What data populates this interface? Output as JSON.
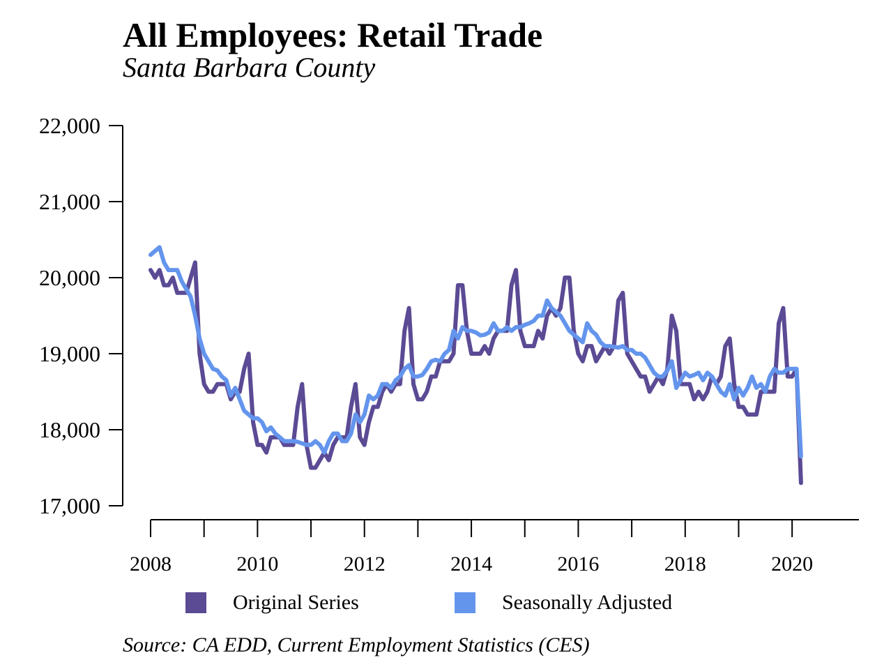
{
  "chart_data": {
    "type": "line",
    "title": "All Employees: Retail Trade",
    "subtitle": "Santa Barbara County",
    "source": "Source: CA EDD, Current Employment Statistics (CES)",
    "xlabel": "",
    "ylabel": "",
    "ylim": [
      17000,
      22000
    ],
    "xlim": [
      2008,
      2021.25
    ],
    "y_ticks": [
      17000,
      18000,
      19000,
      20000,
      21000,
      22000
    ],
    "y_tick_labels": [
      "17,000",
      "18,000",
      "19,000",
      "20,000",
      "21,000",
      "22,000"
    ],
    "x_ticks": [
      2008,
      2009,
      2010,
      2011,
      2012,
      2013,
      2014,
      2015,
      2016,
      2017,
      2018,
      2019,
      2020
    ],
    "x_tick_labels": [
      "2008",
      "2010",
      "2012",
      "2014",
      "2016",
      "2018",
      "2020"
    ],
    "x_tick_label_years": [
      2008,
      2010,
      2012,
      2014,
      2016,
      2018,
      2020
    ],
    "grid": false,
    "legend_position": "bottom",
    "x_start": "2008-01",
    "x_step": "monthly",
    "series": [
      {
        "name": "Original Series",
        "color": "#5b4a94",
        "values": [
          20100,
          20000,
          20100,
          19900,
          19900,
          20000,
          19800,
          19800,
          19800,
          20000,
          20200,
          19000,
          18600,
          18500,
          18500,
          18600,
          18600,
          18600,
          18400,
          18500,
          18500,
          18800,
          19000,
          18100,
          17800,
          17800,
          17700,
          17900,
          17900,
          17900,
          17800,
          17800,
          17800,
          18300,
          18600,
          17800,
          17500,
          17500,
          17600,
          17700,
          17600,
          17800,
          17900,
          17900,
          17900,
          18300,
          18600,
          17900,
          17800,
          18100,
          18300,
          18300,
          18500,
          18600,
          18500,
          18600,
          18600,
          19300,
          19600,
          18600,
          18400,
          18400,
          18500,
          18700,
          18700,
          18900,
          18900,
          18900,
          19000,
          19900,
          19900,
          19300,
          19000,
          19000,
          19000,
          19100,
          19000,
          19200,
          19300,
          19300,
          19300,
          19900,
          20100,
          19300,
          19100,
          19100,
          19100,
          19300,
          19200,
          19500,
          19600,
          19500,
          19600,
          20000,
          20000,
          19300,
          19000,
          18900,
          19100,
          19100,
          18900,
          19000,
          19100,
          19000,
          19100,
          19700,
          19800,
          19000,
          18900,
          18800,
          18700,
          18700,
          18500,
          18600,
          18700,
          18600,
          18800,
          19500,
          19300,
          18600,
          18600,
          18600,
          18400,
          18500,
          18400,
          18500,
          18700,
          18600,
          18700,
          19100,
          19200,
          18600,
          18300,
          18300,
          18200,
          18200,
          18200,
          18500,
          18500,
          18500,
          18500,
          19400,
          19600,
          18700,
          18700,
          18800,
          17300
        ]
      },
      {
        "name": "Seasonally Adjusted",
        "color": "#6495ed",
        "values": [
          20300,
          20350,
          20400,
          20200,
          20100,
          20100,
          20100,
          19950,
          19850,
          19750,
          19500,
          19200,
          19000,
          18900,
          18800,
          18780,
          18700,
          18650,
          18450,
          18550,
          18400,
          18250,
          18200,
          18150,
          18150,
          18100,
          17980,
          18030,
          17950,
          17900,
          17850,
          17850,
          17850,
          17840,
          17820,
          17800,
          17800,
          17850,
          17800,
          17700,
          17850,
          17950,
          17950,
          17850,
          17850,
          17950,
          18200,
          18100,
          18200,
          18450,
          18400,
          18450,
          18600,
          18600,
          18550,
          18650,
          18700,
          18800,
          18850,
          18700,
          18700,
          18720,
          18800,
          18900,
          18920,
          18900,
          19000,
          19050,
          19300,
          19200,
          19350,
          19300,
          19300,
          19280,
          19240,
          19250,
          19280,
          19400,
          19300,
          19300,
          19350,
          19300,
          19350,
          19350,
          19380,
          19400,
          19430,
          19500,
          19500,
          19700,
          19600,
          19550,
          19500,
          19400,
          19300,
          19250,
          19200,
          19150,
          19400,
          19300,
          19250,
          19150,
          19100,
          19100,
          19090,
          19080,
          19100,
          19050,
          19050,
          19000,
          19000,
          18950,
          18850,
          18750,
          18700,
          18700,
          18780,
          18900,
          18550,
          18650,
          18750,
          18700,
          18720,
          18750,
          18650,
          18750,
          18700,
          18600,
          18500,
          18450,
          18600,
          18400,
          18550,
          18450,
          18550,
          18700,
          18550,
          18600,
          18500,
          18700,
          18800,
          18750,
          18750,
          18800,
          18800,
          18800,
          17650
        ]
      }
    ]
  }
}
